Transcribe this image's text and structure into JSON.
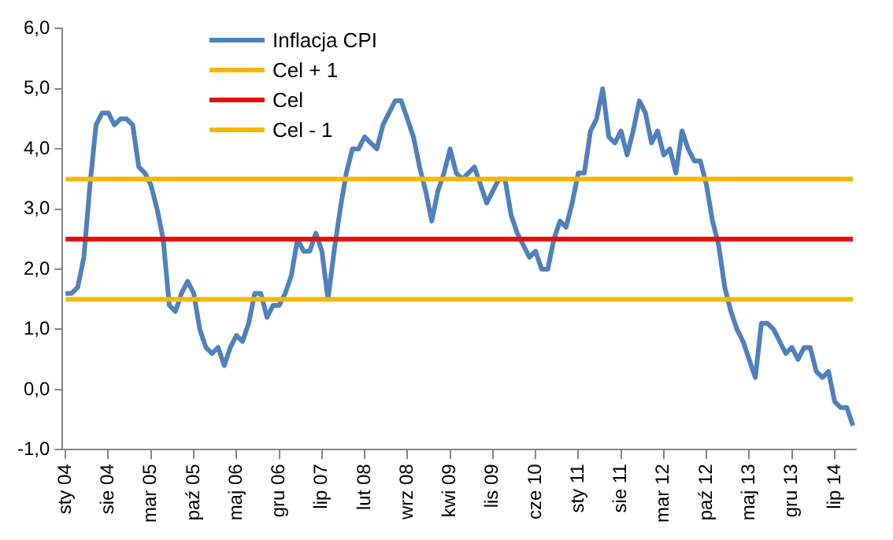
{
  "chart_data": {
    "type": "line",
    "categories": [
      "sty 04",
      null,
      null,
      null,
      null,
      null,
      null,
      "sie 04",
      null,
      null,
      null,
      null,
      null,
      null,
      "mar 05",
      null,
      null,
      null,
      null,
      null,
      null,
      "paź 05",
      null,
      null,
      null,
      null,
      null,
      null,
      "maj 06",
      null,
      null,
      null,
      null,
      null,
      null,
      "gru 06",
      null,
      null,
      null,
      null,
      null,
      null,
      "lip 07",
      null,
      null,
      null,
      null,
      null,
      null,
      "lut 08",
      null,
      null,
      null,
      null,
      null,
      null,
      "wrz 08",
      null,
      null,
      null,
      null,
      null,
      null,
      "kwi 09",
      null,
      null,
      null,
      null,
      null,
      null,
      "lis 09",
      null,
      null,
      null,
      null,
      null,
      null,
      "cze 10",
      null,
      null,
      null,
      null,
      null,
      null,
      "sty 11",
      null,
      null,
      null,
      null,
      null,
      null,
      "sie 11",
      null,
      null,
      null,
      null,
      null,
      null,
      "mar 12",
      null,
      null,
      null,
      null,
      null,
      null,
      "paź 12",
      null,
      null,
      null,
      null,
      null,
      null,
      "maj 13",
      null,
      null,
      null,
      null,
      null,
      null,
      "gru 13",
      null,
      null,
      null,
      null,
      null,
      null,
      "lip 14",
      null,
      null,
      null
    ],
    "series": [
      {
        "name": "Inflacja CPI",
        "color": "#4f81bd",
        "values": [
          1.6,
          1.6,
          1.7,
          2.2,
          3.4,
          4.4,
          4.6,
          4.6,
          4.4,
          4.5,
          4.5,
          4.4,
          3.7,
          3.6,
          3.4,
          3.0,
          2.5,
          1.4,
          1.3,
          1.6,
          1.8,
          1.6,
          1.0,
          0.7,
          0.6,
          0.7,
          0.4,
          0.7,
          0.9,
          0.8,
          1.1,
          1.6,
          1.6,
          1.2,
          1.4,
          1.4,
          1.6,
          1.9,
          2.5,
          2.3,
          2.3,
          2.6,
          2.3,
          1.5,
          2.3,
          3.0,
          3.6,
          4.0,
          4.0,
          4.2,
          4.1,
          4.0,
          4.4,
          4.6,
          4.8,
          4.8,
          4.5,
          4.2,
          3.7,
          3.3,
          2.8,
          3.3,
          3.6,
          4.0,
          3.6,
          3.5,
          3.6,
          3.7,
          3.4,
          3.1,
          3.3,
          3.5,
          3.5,
          2.9,
          2.6,
          2.4,
          2.2,
          2.3,
          2.0,
          2.0,
          2.5,
          2.8,
          2.7,
          3.1,
          3.6,
          3.6,
          4.3,
          4.5,
          5.0,
          4.2,
          4.1,
          4.3,
          3.9,
          4.3,
          4.8,
          4.6,
          4.1,
          4.3,
          3.9,
          4.0,
          3.6,
          4.3,
          4.0,
          3.8,
          3.8,
          3.4,
          2.8,
          2.4,
          1.7,
          1.3,
          1.0,
          0.8,
          0.5,
          0.2,
          1.1,
          1.1,
          1.0,
          0.8,
          0.6,
          0.7,
          0.5,
          0.7,
          0.7,
          0.3,
          0.2,
          0.3,
          -0.2,
          -0.3,
          -0.3,
          -0.6
        ]
      },
      {
        "name": "Cel + 1",
        "color": "#f5b800",
        "values": [
          3.5,
          3.5,
          3.5,
          3.5,
          3.5,
          3.5,
          3.5,
          3.5,
          3.5,
          3.5,
          3.5,
          3.5,
          3.5,
          3.5,
          3.5,
          3.5,
          3.5,
          3.5,
          3.5,
          3.5,
          3.5,
          3.5,
          3.5,
          3.5,
          3.5,
          3.5,
          3.5,
          3.5,
          3.5,
          3.5,
          3.5,
          3.5,
          3.5,
          3.5,
          3.5,
          3.5,
          3.5,
          3.5,
          3.5,
          3.5,
          3.5,
          3.5,
          3.5,
          3.5,
          3.5,
          3.5,
          3.5,
          3.5,
          3.5,
          3.5,
          3.5,
          3.5,
          3.5,
          3.5,
          3.5,
          3.5,
          3.5,
          3.5,
          3.5,
          3.5,
          3.5,
          3.5,
          3.5,
          3.5,
          3.5,
          3.5,
          3.5,
          3.5,
          3.5,
          3.5,
          3.5,
          3.5,
          3.5,
          3.5,
          3.5,
          3.5,
          3.5,
          3.5,
          3.5,
          3.5,
          3.5,
          3.5,
          3.5,
          3.5,
          3.5,
          3.5,
          3.5,
          3.5,
          3.5,
          3.5,
          3.5,
          3.5,
          3.5,
          3.5,
          3.5,
          3.5,
          3.5,
          3.5,
          3.5,
          3.5,
          3.5,
          3.5,
          3.5,
          3.5,
          3.5,
          3.5,
          3.5,
          3.5,
          3.5,
          3.5,
          3.5,
          3.5,
          3.5,
          3.5,
          3.5,
          3.5,
          3.5,
          3.5,
          3.5,
          3.5,
          3.5,
          3.5,
          3.5,
          3.5,
          3.5,
          3.5,
          3.5,
          3.5,
          3.5,
          3.5
        ]
      },
      {
        "name": "Cel",
        "color": "#e30f0f",
        "values": [
          2.5,
          2.5,
          2.5,
          2.5,
          2.5,
          2.5,
          2.5,
          2.5,
          2.5,
          2.5,
          2.5,
          2.5,
          2.5,
          2.5,
          2.5,
          2.5,
          2.5,
          2.5,
          2.5,
          2.5,
          2.5,
          2.5,
          2.5,
          2.5,
          2.5,
          2.5,
          2.5,
          2.5,
          2.5,
          2.5,
          2.5,
          2.5,
          2.5,
          2.5,
          2.5,
          2.5,
          2.5,
          2.5,
          2.5,
          2.5,
          2.5,
          2.5,
          2.5,
          2.5,
          2.5,
          2.5,
          2.5,
          2.5,
          2.5,
          2.5,
          2.5,
          2.5,
          2.5,
          2.5,
          2.5,
          2.5,
          2.5,
          2.5,
          2.5,
          2.5,
          2.5,
          2.5,
          2.5,
          2.5,
          2.5,
          2.5,
          2.5,
          2.5,
          2.5,
          2.5,
          2.5,
          2.5,
          2.5,
          2.5,
          2.5,
          2.5,
          2.5,
          2.5,
          2.5,
          2.5,
          2.5,
          2.5,
          2.5,
          2.5,
          2.5,
          2.5,
          2.5,
          2.5,
          2.5,
          2.5,
          2.5,
          2.5,
          2.5,
          2.5,
          2.5,
          2.5,
          2.5,
          2.5,
          2.5,
          2.5,
          2.5,
          2.5,
          2.5,
          2.5,
          2.5,
          2.5,
          2.5,
          2.5,
          2.5,
          2.5,
          2.5,
          2.5,
          2.5,
          2.5,
          2.5,
          2.5,
          2.5,
          2.5,
          2.5,
          2.5,
          2.5,
          2.5,
          2.5,
          2.5,
          2.5,
          2.5,
          2.5,
          2.5,
          2.5,
          2.5
        ]
      },
      {
        "name": "Cel - 1",
        "color": "#f5b800",
        "values": [
          1.5,
          1.5,
          1.5,
          1.5,
          1.5,
          1.5,
          1.5,
          1.5,
          1.5,
          1.5,
          1.5,
          1.5,
          1.5,
          1.5,
          1.5,
          1.5,
          1.5,
          1.5,
          1.5,
          1.5,
          1.5,
          1.5,
          1.5,
          1.5,
          1.5,
          1.5,
          1.5,
          1.5,
          1.5,
          1.5,
          1.5,
          1.5,
          1.5,
          1.5,
          1.5,
          1.5,
          1.5,
          1.5,
          1.5,
          1.5,
          1.5,
          1.5,
          1.5,
          1.5,
          1.5,
          1.5,
          1.5,
          1.5,
          1.5,
          1.5,
          1.5,
          1.5,
          1.5,
          1.5,
          1.5,
          1.5,
          1.5,
          1.5,
          1.5,
          1.5,
          1.5,
          1.5,
          1.5,
          1.5,
          1.5,
          1.5,
          1.5,
          1.5,
          1.5,
          1.5,
          1.5,
          1.5,
          1.5,
          1.5,
          1.5,
          1.5,
          1.5,
          1.5,
          1.5,
          1.5,
          1.5,
          1.5,
          1.5,
          1.5,
          1.5,
          1.5,
          1.5,
          1.5,
          1.5,
          1.5,
          1.5,
          1.5,
          1.5,
          1.5,
          1.5,
          1.5,
          1.5,
          1.5,
          1.5,
          1.5,
          1.5,
          1.5,
          1.5,
          1.5,
          1.5,
          1.5,
          1.5,
          1.5,
          1.5,
          1.5,
          1.5,
          1.5,
          1.5,
          1.5,
          1.5,
          1.5,
          1.5,
          1.5,
          1.5,
          1.5,
          1.5,
          1.5,
          1.5,
          1.5,
          1.5,
          1.5,
          1.5,
          1.5,
          1.5,
          1.5
        ]
      }
    ],
    "ylim": [
      -1,
      6
    ],
    "yticks": [
      {
        "value": -1,
        "label": "-1,0"
      },
      {
        "value": 0,
        "label": "0,0"
      },
      {
        "value": 1,
        "label": "1,0"
      },
      {
        "value": 2,
        "label": "2,0"
      },
      {
        "value": 3,
        "label": "3,0"
      },
      {
        "value": 4,
        "label": "4,0"
      },
      {
        "value": 5,
        "label": "5,0"
      },
      {
        "value": 6,
        "label": "6,0"
      }
    ],
    "grid": false,
    "legend": "top left",
    "marker": "none",
    "line_style": "solid"
  }
}
